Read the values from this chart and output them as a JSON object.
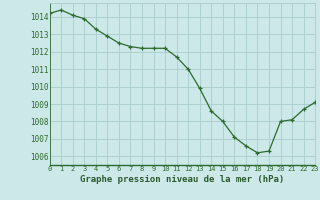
{
  "x": [
    0,
    1,
    2,
    3,
    4,
    5,
    6,
    7,
    8,
    9,
    10,
    11,
    12,
    13,
    14,
    15,
    16,
    17,
    18,
    19,
    20,
    21,
    22,
    23
  ],
  "y": [
    1014.2,
    1014.4,
    1014.1,
    1013.9,
    1013.3,
    1012.9,
    1012.5,
    1012.3,
    1012.2,
    1012.2,
    1012.2,
    1011.7,
    1011.0,
    1009.9,
    1008.6,
    1008.0,
    1007.1,
    1006.6,
    1006.2,
    1006.3,
    1008.0,
    1008.1,
    1008.7,
    1009.1
  ],
  "line_color": "#2d6a2d",
  "marker_color": "#2d6a2d",
  "bg_color": "#cce8e8",
  "grid_color": "#aacccc",
  "xlabel": "Graphe pression niveau de la mer (hPa)",
  "xlabel_color": "#2d5a2d",
  "tick_color": "#2d6a2d",
  "ylim": [
    1005.5,
    1014.8
  ],
  "yticks": [
    1006,
    1007,
    1008,
    1009,
    1010,
    1011,
    1012,
    1013,
    1014
  ],
  "xticks": [
    0,
    1,
    2,
    3,
    4,
    5,
    6,
    7,
    8,
    9,
    10,
    11,
    12,
    13,
    14,
    15,
    16,
    17,
    18,
    19,
    20,
    21,
    22,
    23
  ],
  "xlim": [
    0,
    23
  ]
}
